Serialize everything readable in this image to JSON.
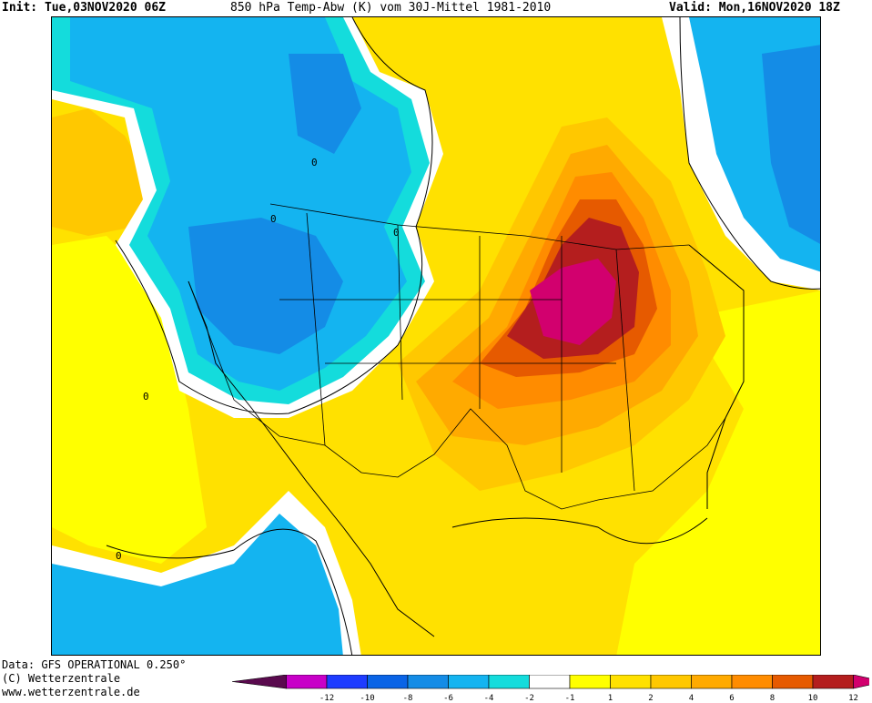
{
  "header": {
    "init": "Init: Tue,03NOV2020 06Z",
    "parameter": "850 hPa Temp-Abw (K) vom 30J-Mittel 1981-2010",
    "valid": "Valid: Mon,16NOV2020 18Z"
  },
  "footer": {
    "data_source": "Data: GFS OPERATIONAL 0.250°",
    "copyright": "(C) Wetterzentrale",
    "website": "www.wetterzentrale.de"
  },
  "map": {
    "contour_label": "0"
  },
  "legend": {
    "colors": [
      "#5a0a4e",
      "#c800c8",
      "#1e3cff",
      "#0a64e6",
      "#148ce6",
      "#14b4f0",
      "#14dcdc",
      "#ffffff",
      "#ffff00",
      "#ffe100",
      "#ffc800",
      "#ffaa00",
      "#ff8c00",
      "#e65a00",
      "#b41e1e",
      "#d2006e"
    ],
    "tick_labels": [
      "-12",
      "-10",
      "-8",
      "-6",
      "-4",
      "-2",
      "-1",
      "1",
      "2",
      "4",
      "6",
      "8",
      "10",
      "12"
    ]
  },
  "colors": {
    "strong_cold": "#148ce6",
    "cold": "#14b4f0",
    "neutral": "#ffffff",
    "warm_1": "#ffff00",
    "warm_2": "#ffe100",
    "warm_3": "#ffc800",
    "warm_4": "#ffaa00",
    "warm_5": "#ff8c00",
    "warm_6": "#e65a00",
    "hot": "#b41e1e",
    "hottest": "#d2006e"
  }
}
